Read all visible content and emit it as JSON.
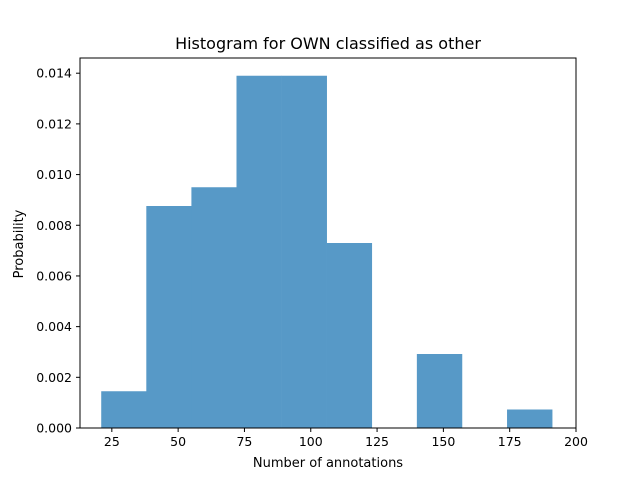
{
  "chart_data": {
    "type": "bar",
    "title": "Histogram for OWN classified as other",
    "xlabel": "Number of annotations",
    "ylabel": "Probability",
    "xlim": [
      13,
      200
    ],
    "ylim": [
      0,
      0.0146
    ],
    "grid": false,
    "bar_color": "#5799c7",
    "bins": [
      {
        "x0": 21,
        "x1": 38,
        "value": 0.00145
      },
      {
        "x0": 38,
        "x1": 55,
        "value": 0.00876
      },
      {
        "x0": 55,
        "x1": 72,
        "value": 0.0095
      },
      {
        "x0": 72,
        "x1": 89,
        "value": 0.0139
      },
      {
        "x0": 89,
        "x1": 106,
        "value": 0.0139
      },
      {
        "x0": 106,
        "x1": 123,
        "value": 0.0073
      },
      {
        "x0": 123,
        "x1": 140,
        "value": 0.0
      },
      {
        "x0": 140,
        "x1": 157,
        "value": 0.00292
      },
      {
        "x0": 157,
        "x1": 174,
        "value": 0.0
      },
      {
        "x0": 174,
        "x1": 191,
        "value": 0.00073
      }
    ],
    "xticks": [
      {
        "value": 25,
        "label": "25"
      },
      {
        "value": 50,
        "label": "50"
      },
      {
        "value": 75,
        "label": "75"
      },
      {
        "value": 100,
        "label": "100"
      },
      {
        "value": 125,
        "label": "125"
      },
      {
        "value": 150,
        "label": "150"
      },
      {
        "value": 175,
        "label": "175"
      },
      {
        "value": 200,
        "label": "200"
      }
    ],
    "yticks": [
      {
        "value": 0.0,
        "label": "0.000"
      },
      {
        "value": 0.002,
        "label": "0.002"
      },
      {
        "value": 0.004,
        "label": "0.004"
      },
      {
        "value": 0.006,
        "label": "0.006"
      },
      {
        "value": 0.008,
        "label": "0.008"
      },
      {
        "value": 0.01,
        "label": "0.010"
      },
      {
        "value": 0.012,
        "label": "0.012"
      },
      {
        "value": 0.014,
        "label": "0.014"
      }
    ]
  }
}
